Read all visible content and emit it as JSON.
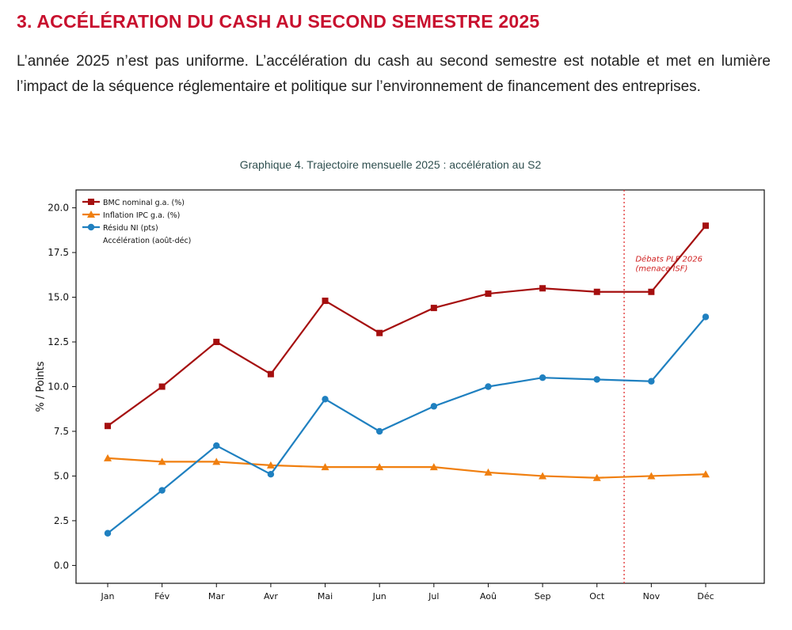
{
  "section": {
    "title": "3. ACCÉLÉRATION DU CASH AU SECOND SEMESTRE 2025",
    "paragraph": "L’année 2025 n’est pas uniforme. L’accélération du cash au second semestre est notable et met en lumière l’impact de la séquence réglementaire et politique sur l’environnement de financement des entreprises."
  },
  "chart_data": {
    "type": "line",
    "title": "Graphique 4. Trajectoire mensuelle 2025 : accélération au S2",
    "xlabel": "",
    "ylabel": "% / Points",
    "categories": [
      "Jan",
      "Fév",
      "Mar",
      "Avr",
      "Mai",
      "Jun",
      "Jul",
      "Aoû",
      "Sep",
      "Oct",
      "Nov",
      "Déc"
    ],
    "ylim": [
      -1.0,
      21.0
    ],
    "yticks": [
      0.0,
      2.5,
      5.0,
      7.5,
      10.0,
      12.5,
      15.0,
      17.5,
      20.0
    ],
    "ytick_labels": [
      "0.0",
      "2.5",
      "5.0",
      "7.5",
      "10.0",
      "12.5",
      "15.0",
      "17.5",
      "20.0"
    ],
    "grid": false,
    "legend_position": "top-left",
    "series": [
      {
        "name": "BMC nominal g.a. (%)",
        "color": "#a50f0f",
        "marker": "square",
        "values": [
          7.8,
          10.0,
          12.5,
          10.7,
          14.8,
          13.0,
          14.4,
          15.2,
          15.5,
          15.3,
          15.3,
          19.0
        ]
      },
      {
        "name": "Inflation IPC g.a. (%)",
        "color": "#f07f0f",
        "marker": "triangle",
        "values": [
          6.0,
          5.8,
          5.8,
          5.6,
          5.5,
          5.5,
          5.5,
          5.2,
          5.0,
          4.9,
          5.0,
          5.1
        ]
      },
      {
        "name": "Résidu NI (pts)",
        "color": "#1f80c0",
        "marker": "circle",
        "values": [
          1.8,
          4.2,
          6.7,
          5.1,
          9.3,
          7.5,
          8.9,
          10.0,
          10.5,
          10.4,
          10.3,
          13.9
        ]
      }
    ],
    "legend_extra": "Accélération (août-déc)",
    "vline": {
      "x_between": [
        "Oct",
        "Nov"
      ],
      "x_fraction": 0.5,
      "color": "#e03030",
      "style": "dotted"
    },
    "annotation": {
      "lines": [
        "Débats PLF 2026",
        "(menace ISF)"
      ],
      "color": "#d02020",
      "near": "Nov",
      "y": 17.0
    }
  }
}
